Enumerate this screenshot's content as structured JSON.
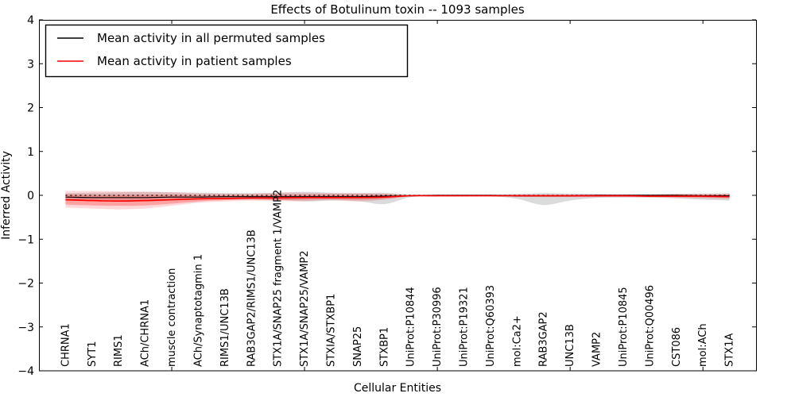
{
  "figure": {
    "title": "Effects of Botulinum toxin -- 1093 samples",
    "xlabel": "Cellular Entities",
    "ylabel": "Inferred Activity"
  },
  "chart_data": {
    "type": "line",
    "title": "Effects of Botulinum toxin -- 1093 samples",
    "xlabel": "Cellular Entities",
    "ylabel": "Inferred Activity",
    "ylim": [
      -4,
      4
    ],
    "yticks": [
      4,
      3,
      2,
      1,
      0,
      -1,
      -2,
      -3,
      -4
    ],
    "xticks_major_units": [
      5,
      10,
      15,
      20,
      25
    ],
    "grid": false,
    "legend_position": "upper left",
    "legend": [
      {
        "label": "Mean activity in all permuted samples",
        "color": "#000000"
      },
      {
        "label": "Mean activity in patient samples",
        "color": "#ff0000"
      }
    ],
    "categories": [
      "CHRNA1",
      "SYT1",
      "RIMS1",
      "ACh/CHRNA1",
      "muscle contraction",
      "ACh/Synaptotagmin 1",
      "RIMS1/UNC13B",
      "RAB3GAP2/RIMS1/UNC13B",
      "STX1A/SNAP25 fragment 1/VAMP2",
      "STX1A/SNAP25/VAMP2",
      "STXIA/STXBP1",
      "SNAP25",
      "STXBP1",
      "UniProt:P10844",
      "UniProt:P30996",
      "UniProt:P19321",
      "UniProt:Q60393",
      "mol:Ca2+",
      "RAB3GAP2",
      "UNC13B",
      "VAMP2",
      "UniProt:P10845",
      "UniProt:Q00496",
      "CST086",
      "mol:ACh",
      "STX1A"
    ],
    "series": [
      {
        "name": "Mean activity in all permuted samples",
        "color": "#000000",
        "style": "solid",
        "width": 1.2,
        "values": [
          -0.04,
          -0.05,
          -0.05,
          -0.05,
          -0.04,
          -0.04,
          -0.03,
          -0.03,
          -0.03,
          -0.03,
          -0.03,
          -0.03,
          -0.02,
          -0.01,
          0,
          0,
          0,
          -0.01,
          -0.01,
          -0.01,
          0,
          0,
          0,
          0,
          -0.01,
          -0.01
        ]
      },
      {
        "name": "Mean activity in patient samples",
        "color": "#ff0000",
        "style": "solid",
        "width": 1.6,
        "values": [
          -0.1,
          -0.12,
          -0.13,
          -0.12,
          -0.1,
          -0.08,
          -0.07,
          -0.06,
          -0.06,
          -0.05,
          -0.05,
          -0.05,
          -0.04,
          -0.01,
          -0.01,
          -0.01,
          -0.01,
          -0.01,
          -0.01,
          -0.01,
          -0.01,
          -0.01,
          -0.02,
          -0.02,
          -0.02,
          -0.03
        ]
      }
    ],
    "zero_line": {
      "value": 0,
      "color": "#000000",
      "style": "dotted"
    },
    "bands": [
      {
        "name": "permuted-std-band",
        "color": "#999999",
        "opacity": 0.35,
        "upper": [
          0.05,
          0.06,
          0.07,
          0.08,
          0.07,
          0.06,
          0.05,
          0.05,
          0.06,
          0.08,
          0.06,
          0.05,
          0.06,
          0.02,
          0.01,
          0.01,
          0.01,
          0.03,
          0.05,
          0.04,
          0.03,
          0.02,
          0.02,
          0.03,
          0.04,
          0.05
        ],
        "lower": [
          -0.12,
          -0.13,
          -0.14,
          -0.14,
          -0.12,
          -0.1,
          -0.09,
          -0.09,
          -0.1,
          -0.14,
          -0.12,
          -0.13,
          -0.2,
          -0.04,
          -0.02,
          -0.02,
          -0.02,
          -0.08,
          -0.22,
          -0.12,
          -0.06,
          -0.05,
          -0.05,
          -0.07,
          -0.1,
          -0.12
        ]
      },
      {
        "name": "patient-std-outer-band",
        "color": "#ff0000",
        "opacity": 0.15,
        "upper": [
          0.1,
          0.1,
          0.09,
          0.08,
          0.07,
          0.05,
          0.04,
          0.04,
          0.06,
          0.06,
          0.05,
          0.05,
          0.04,
          0.01,
          0.01,
          0.01,
          0.01,
          0.02,
          0.02,
          0.02,
          0.02,
          0.02,
          0.02,
          0.03,
          0.03,
          0.03
        ],
        "lower": [
          -0.28,
          -0.3,
          -0.32,
          -0.3,
          -0.24,
          -0.17,
          -0.14,
          -0.12,
          -0.13,
          -0.13,
          -0.11,
          -0.14,
          -0.1,
          -0.02,
          -0.02,
          -0.02,
          -0.02,
          -0.03,
          -0.04,
          -0.04,
          -0.04,
          -0.04,
          -0.05,
          -0.06,
          -0.07,
          -0.09
        ]
      },
      {
        "name": "patient-std-inner-band",
        "color": "#ff0000",
        "opacity": 0.25,
        "upper": [
          0.02,
          0.01,
          0.01,
          0.01,
          0.01,
          0,
          0,
          0,
          0.01,
          0.01,
          0.01,
          0.01,
          0.01,
          0,
          0,
          0,
          0,
          0.01,
          0.01,
          0.01,
          0.01,
          0.01,
          0.01,
          0.01,
          0.01,
          0.02
        ],
        "lower": [
          -0.21,
          -0.23,
          -0.24,
          -0.23,
          -0.19,
          -0.14,
          -0.11,
          -0.1,
          -0.11,
          -0.1,
          -0.09,
          -0.1,
          -0.08,
          -0.02,
          -0.02,
          -0.02,
          -0.02,
          -0.03,
          -0.03,
          -0.03,
          -0.03,
          -0.03,
          -0.03,
          -0.04,
          -0.05,
          -0.06
        ]
      }
    ]
  }
}
